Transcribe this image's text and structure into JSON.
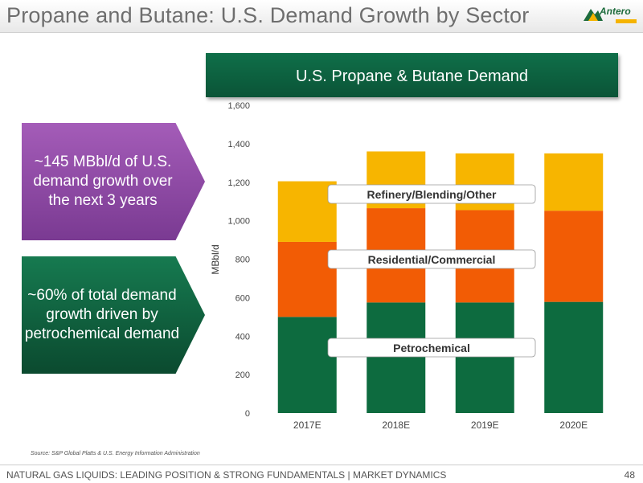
{
  "title": "Propane and Butane: U.S. Demand Growth by Sector",
  "logo": {
    "name": "Antero"
  },
  "callouts": {
    "growth": "~145 MBbl/d of U.S. demand growth over the next 3 years",
    "petrochem": "~60% of total demand growth driven by petrochemical demand"
  },
  "source": "Source: S&P Global Platts & U.S. Energy Information Administration",
  "footer": {
    "text": "NATURAL GAS LIQUIDS: LEADING POSITION & STRONG FUNDAMENTALS | MARKET DYNAMICS",
    "page": "48"
  },
  "colors": {
    "petrochemical": "#0d6b3f",
    "residential": "#f25c05",
    "refinery": "#f7b500",
    "header": "#0b5e3c",
    "callout_purple": "#8e4aa6"
  },
  "chart_data": {
    "type": "bar",
    "stacked": true,
    "title": "U.S. Propane & Butane Demand",
    "ylabel": "MBbl/d",
    "xlabel": "",
    "ylim": [
      0,
      1600
    ],
    "yticks": [
      0,
      200,
      400,
      600,
      800,
      1000,
      1200,
      1400,
      1600
    ],
    "ytick_labels": [
      "0",
      "200",
      "400",
      "600",
      "800",
      "1,000",
      "1,200",
      "1,400",
      "1,600"
    ],
    "grid": false,
    "categories": [
      "2017E",
      "2018E",
      "2019E",
      "2020E"
    ],
    "series": [
      {
        "name": "Petrochemical",
        "values": [
          500,
          575,
          575,
          578
        ]
      },
      {
        "name": "Residential/Commercial",
        "values": [
          390,
          490,
          480,
          474
        ]
      },
      {
        "name": "Refinery/Blending/Other",
        "values": [
          315,
          295,
          295,
          298
        ]
      }
    ]
  }
}
